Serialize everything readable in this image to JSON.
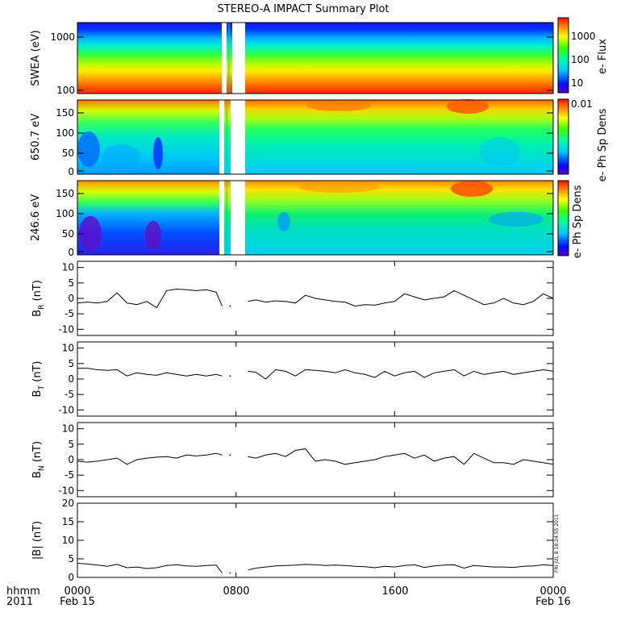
{
  "title": "STEREO-A IMPACT Summary Plot",
  "stamp": "FRI JUL 8 18:24:55 2011",
  "colors": {
    "line": "#000000",
    "gap_fill": "#ffffff"
  },
  "chart_data": [
    {
      "type": "heatmap",
      "panel": "swea",
      "ylabel": "SWEA (eV)",
      "yscale": "log",
      "ylim": [
        100,
        2000
      ],
      "yticks": [
        "100",
        "1000"
      ],
      "colorbar_label": "e- Flux",
      "colorbar_ticks": [
        "10",
        "100",
        "1000"
      ],
      "colorbar_scale": "log",
      "colorbar_range": [
        3,
        3000
      ],
      "gaps_hours": [
        [
          7.3,
          7.55
        ],
        [
          8.0,
          8.45
        ]
      ],
      "description_values": {
        "energy_low_flux": 3000,
        "energy_high_flux": 5
      }
    },
    {
      "type": "heatmap",
      "panel": "pad_650",
      "ylabel": "650.7 eV",
      "ylim": [
        0,
        180
      ],
      "yticks": [
        "0",
        "50",
        "100",
        "150"
      ],
      "colorbar_label": "e- Ph Sp Dens",
      "colorbar_ticks": [
        "0.01"
      ],
      "gaps_hours": [
        [
          7.3,
          7.55
        ],
        [
          7.75,
          8.45
        ]
      ]
    },
    {
      "type": "heatmap",
      "panel": "pad_246",
      "ylabel": "246.6 eV",
      "ylim": [
        0,
        180
      ],
      "yticks": [
        "0",
        "50",
        "100",
        "150"
      ],
      "colorbar_label": "e- Ph Sp Dens",
      "colorbar_ticks": [],
      "gaps_hours": [
        [
          7.3,
          7.55
        ],
        [
          7.75,
          8.45
        ]
      ]
    },
    {
      "type": "line",
      "panel": "br",
      "ylabel": "B",
      "ylabel_sub": "R",
      "ylabel_unit": "(nT)",
      "ylim": [
        -12,
        12
      ],
      "yticks": [
        "-10",
        "-5",
        "0",
        "5",
        "10"
      ],
      "x": [
        0,
        0.5,
        1,
        1.5,
        2,
        2.5,
        3,
        3.5,
        4,
        4.5,
        5,
        5.5,
        6,
        6.5,
        7,
        7.3,
        7.6,
        8.6,
        9,
        9.5,
        10,
        10.5,
        11,
        11.5,
        12,
        12.5,
        13,
        13.5,
        14,
        14.5,
        15,
        15.5,
        16,
        16.5,
        17,
        17.5,
        18,
        18.5,
        19,
        19.5,
        20,
        20.5,
        21,
        21.5,
        22,
        22.5,
        23,
        23.5,
        24
      ],
      "y": [
        -1.5,
        -1.2,
        -1.5,
        -1,
        1.8,
        -1.5,
        -2,
        -1,
        -3,
        2.5,
        3,
        2.8,
        2.5,
        2.8,
        2,
        -2.5,
        null,
        -1,
        -0.5,
        -1.2,
        -0.8,
        -1,
        -1.5,
        1,
        0,
        -0.5,
        -1,
        -1.2,
        -2.5,
        -2,
        -2.2,
        -1.5,
        -1,
        1.5,
        0.5,
        -0.5,
        0,
        0.5,
        2.5,
        1,
        -0.5,
        -2,
        -1.5,
        0,
        -1.5,
        -2,
        -1,
        1.5,
        0
      ]
    },
    {
      "type": "line",
      "panel": "bt",
      "ylabel": "B",
      "ylabel_sub": "T",
      "ylabel_unit": "(nT)",
      "ylim": [
        -12,
        12
      ],
      "yticks": [
        "-10",
        "-5",
        "0",
        "5",
        "10"
      ],
      "x": [
        0,
        0.5,
        1,
        1.5,
        2,
        2.5,
        3,
        3.5,
        4,
        4.5,
        5,
        5.5,
        6,
        6.5,
        7,
        7.3,
        7.6,
        8.6,
        9,
        9.5,
        10,
        10.5,
        11,
        11.5,
        12,
        12.5,
        13,
        13.5,
        14,
        14.5,
        15,
        15.5,
        16,
        16.5,
        17,
        17.5,
        18,
        18.5,
        19,
        19.5,
        20,
        20.5,
        21,
        21.5,
        22,
        22.5,
        23,
        23.5,
        24
      ],
      "y": [
        3.5,
        3.5,
        3,
        2.8,
        3,
        1,
        2,
        1.5,
        1.2,
        2,
        1.5,
        1,
        1.5,
        1,
        1.5,
        1,
        null,
        2.5,
        2.2,
        0,
        3,
        2.5,
        1,
        3,
        2.8,
        2.5,
        2,
        3,
        2,
        1.5,
        0.5,
        2.5,
        1,
        2,
        2.5,
        0.5,
        2,
        2.5,
        3,
        1,
        2.5,
        1.5,
        2,
        2.5,
        1.5,
        2,
        2.5,
        3,
        2.5
      ]
    },
    {
      "type": "line",
      "panel": "bn",
      "ylabel": "B",
      "ylabel_sub": "N",
      "ylabel_unit": "(nT)",
      "ylim": [
        -12,
        12
      ],
      "yticks": [
        "-10",
        "-5",
        "0",
        "5",
        "10"
      ],
      "x": [
        0,
        0.5,
        1,
        1.5,
        2,
        2.5,
        3,
        3.5,
        4,
        4.5,
        5,
        5.5,
        6,
        6.5,
        7,
        7.3,
        7.6,
        8.6,
        9,
        9.5,
        10,
        10.5,
        11,
        11.5,
        12,
        12.5,
        13,
        13.5,
        14,
        14.5,
        15,
        15.5,
        16,
        16.5,
        17,
        17.5,
        18,
        18.5,
        19,
        19.5,
        20,
        20.5,
        21,
        21.5,
        22,
        22.5,
        23,
        23.5,
        24
      ],
      "y": [
        -0.5,
        -0.8,
        -0.5,
        0,
        0.5,
        -1.5,
        0,
        0.5,
        0.8,
        1,
        0.5,
        1.5,
        1.2,
        1.5,
        2,
        1.5,
        null,
        1,
        0.5,
        1.5,
        2,
        1,
        3,
        3.5,
        -0.5,
        0,
        -0.5,
        -1.5,
        -1,
        -0.5,
        0,
        1,
        1.5,
        2,
        0.5,
        1.5,
        -0.5,
        0.5,
        1,
        -1.5,
        2,
        0.5,
        -1,
        -1,
        -1.5,
        0,
        -0.5,
        -1,
        -1.5
      ]
    },
    {
      "type": "line",
      "panel": "bmag",
      "ylabel": "|B|",
      "ylabel_unit": "(nT)",
      "ylim": [
        0,
        20
      ],
      "yticks": [
        "0",
        "5",
        "10",
        "15",
        "20"
      ],
      "x": [
        0,
        0.5,
        1,
        1.5,
        2,
        2.5,
        3,
        3.5,
        4,
        4.5,
        5,
        5.5,
        6,
        6.5,
        7,
        7.3,
        7.6,
        8.6,
        9,
        9.5,
        10,
        10.5,
        11,
        11.5,
        12,
        12.5,
        13,
        13.5,
        14,
        14.5,
        15,
        15.5,
        16,
        16.5,
        17,
        17.5,
        18,
        18.5,
        19,
        19.5,
        20,
        20.5,
        21,
        21.5,
        22,
        22.5,
        23,
        23.5,
        24
      ],
      "y": [
        3.8,
        3.6,
        3.3,
        3.0,
        3.5,
        2.6,
        2.8,
        2.4,
        2.6,
        3.2,
        3.4,
        3.1,
        3.0,
        3.2,
        3.3,
        1.2,
        null,
        2.0,
        2.5,
        2.8,
        3.1,
        3.2,
        3.3,
        3.5,
        3.4,
        3.2,
        3.3,
        3.2,
        3.0,
        2.9,
        2.6,
        3.0,
        2.8,
        3.2,
        3.4,
        2.7,
        3.1,
        3.3,
        3.4,
        2.5,
        3.2,
        3.0,
        2.8,
        2.8,
        2.7,
        3.0,
        3.1,
        3.4,
        3.2
      ]
    }
  ],
  "x_axis": {
    "row_label": "hhmm",
    "year_label": "2011",
    "ticks": [
      "0000",
      "0800",
      "1600",
      "0000"
    ],
    "tick_hours": [
      0,
      8,
      16,
      24
    ],
    "date_labels": [
      "Feb 15",
      "Feb 16"
    ]
  }
}
